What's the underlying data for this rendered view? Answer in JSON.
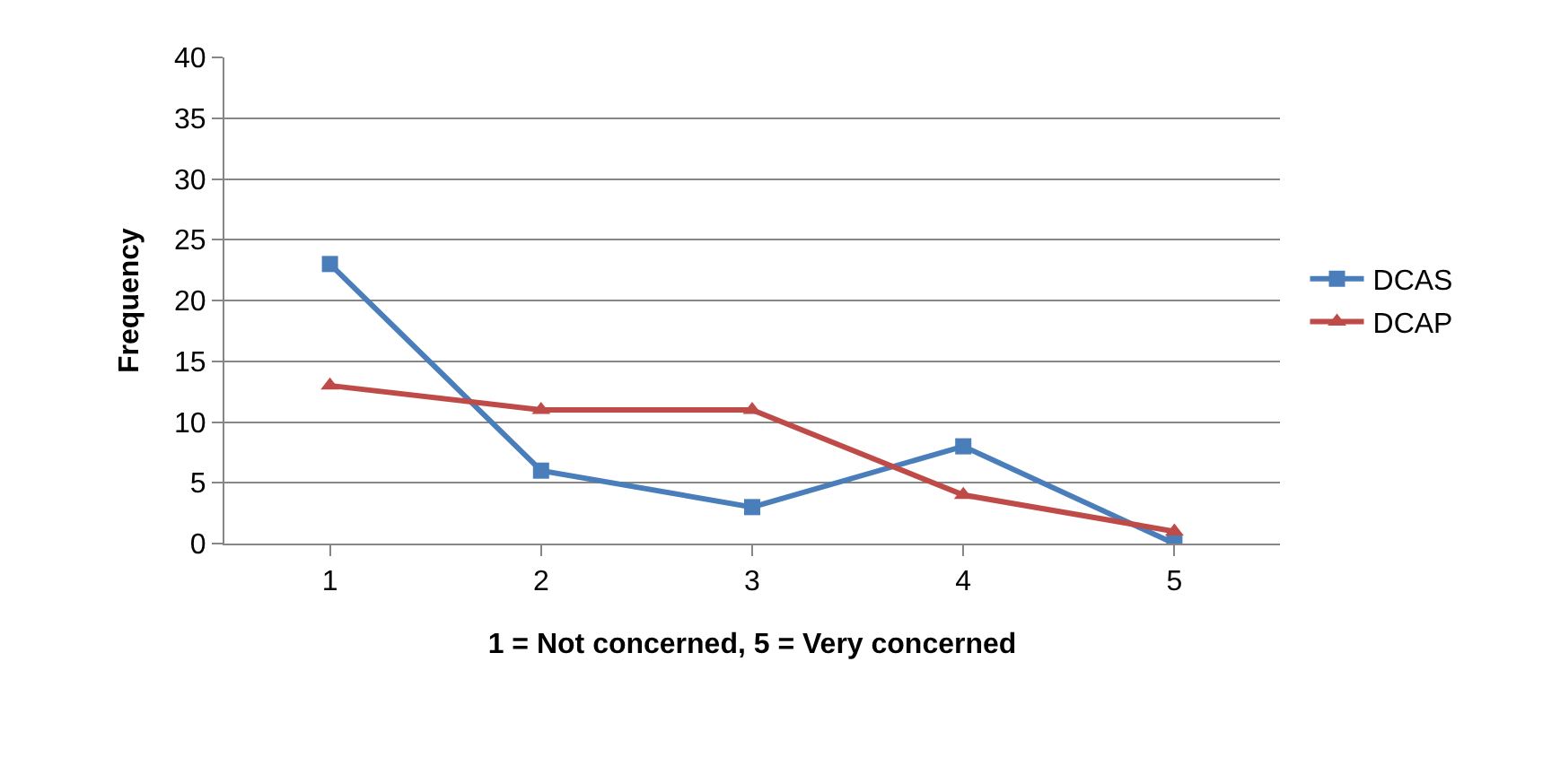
{
  "chart_data": {
    "type": "line",
    "xlabel": "1 = Not concerned, 5 = Very concerned",
    "ylabel": "Frequency",
    "categories": [
      "1",
      "2",
      "3",
      "4",
      "5"
    ],
    "series": [
      {
        "name": "DCAS",
        "color": "#4a7ebb",
        "marker": "square",
        "values": [
          23,
          6,
          3,
          8,
          0
        ]
      },
      {
        "name": "DCAP",
        "color": "#be4b48",
        "marker": "triangle",
        "values": [
          13,
          11,
          11,
          4,
          1
        ]
      }
    ],
    "ylim": [
      0,
      40
    ],
    "yticks": [
      0,
      5,
      10,
      15,
      20,
      25,
      30,
      35,
      40
    ],
    "grid": "y",
    "legend": "right",
    "line_style": "solid"
  }
}
